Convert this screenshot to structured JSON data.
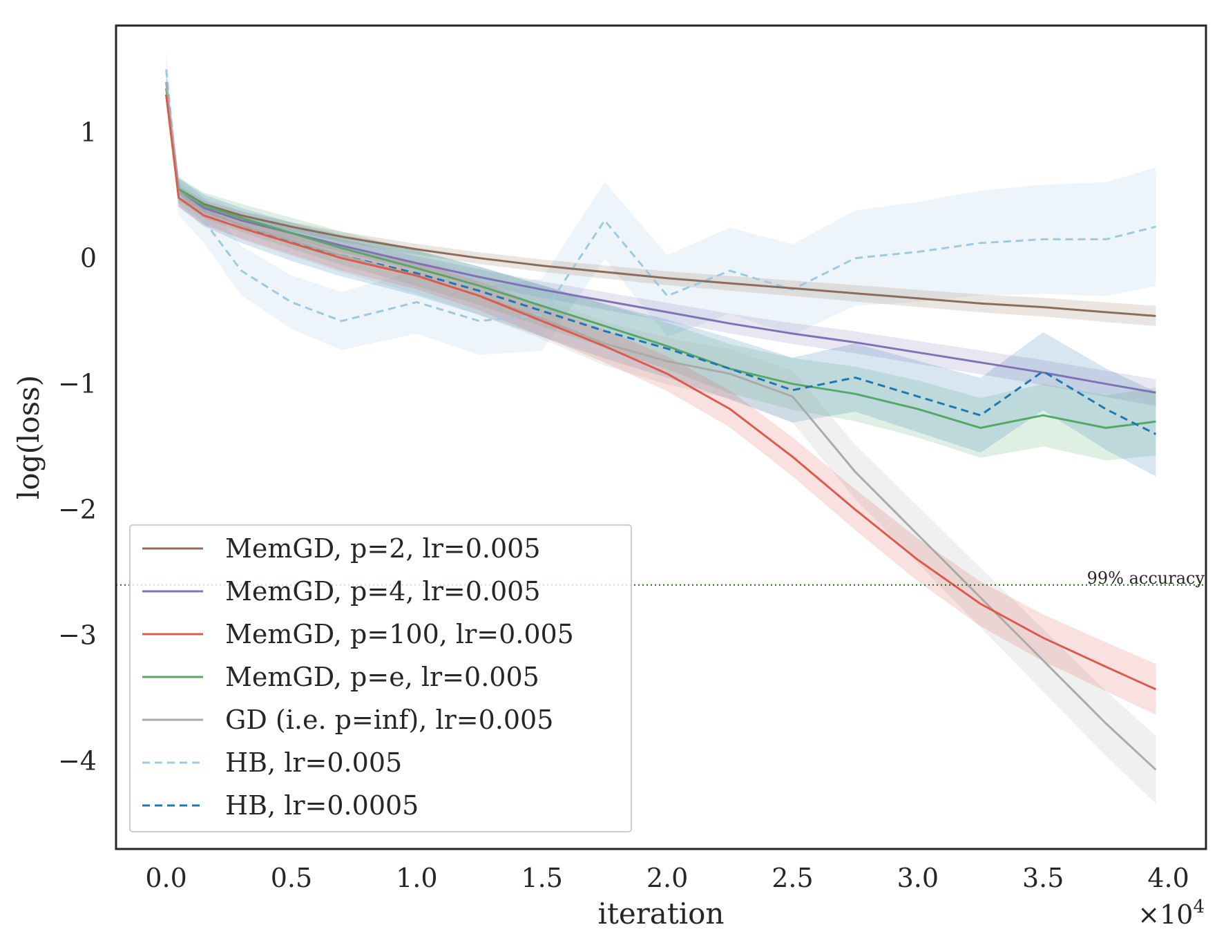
{
  "chart_data": {
    "type": "line",
    "title": "",
    "xlabel": "iteration",
    "ylabel": "log(loss)",
    "x_scale_label": "×10",
    "x_scale_exponent": "4",
    "xlim": [
      -0.2,
      4.15
    ],
    "ylim": [
      -4.7,
      1.85
    ],
    "x_ticks": [
      0.0,
      0.5,
      1.0,
      1.5,
      2.0,
      2.5,
      3.0,
      3.5,
      4.0
    ],
    "x_tick_labels": [
      "0.0",
      "0.5",
      "1.0",
      "1.5",
      "2.0",
      "2.5",
      "3.0",
      "3.5",
      "4.0"
    ],
    "y_ticks": [
      1,
      0,
      -1,
      -2,
      -3,
      -4
    ],
    "y_tick_labels": [
      "1",
      "0",
      "−1",
      "−2",
      "−3",
      "−4"
    ],
    "grid": false,
    "legend_position": "lower-left",
    "hline": {
      "y": -2.6,
      "label": "99% accuracy",
      "color": "#1a7a1a"
    },
    "x": [
      0.0,
      0.05,
      0.15,
      0.3,
      0.5,
      0.7,
      1.0,
      1.25,
      1.5,
      1.75,
      2.0,
      2.25,
      2.5,
      2.75,
      3.0,
      3.25,
      3.5,
      3.75,
      3.95
    ],
    "series": [
      {
        "name": "MemGD, p=2, lr=0.005",
        "color": "#8c6d5a",
        "dash": "solid",
        "band": 0.06,
        "values": [
          1.3,
          0.55,
          0.43,
          0.34,
          0.25,
          0.17,
          0.07,
          0.0,
          -0.06,
          -0.11,
          -0.16,
          -0.2,
          -0.24,
          -0.28,
          -0.32,
          -0.36,
          -0.39,
          -0.43,
          -0.46
        ]
      },
      {
        "name": "MemGD, p=4, lr=0.005",
        "color": "#8172b3",
        "dash": "solid",
        "band": 0.08,
        "values": [
          1.3,
          0.52,
          0.4,
          0.3,
          0.2,
          0.1,
          -0.04,
          -0.15,
          -0.25,
          -0.34,
          -0.43,
          -0.52,
          -0.6,
          -0.67,
          -0.75,
          -0.83,
          -0.91,
          -1.0,
          -1.07
        ]
      },
      {
        "name": "MemGD, p=100, lr=0.005",
        "color": "#dd5a4e",
        "dash": "solid",
        "band": 0.15,
        "values": [
          1.3,
          0.48,
          0.34,
          0.24,
          0.12,
          0.0,
          -0.14,
          -0.3,
          -0.5,
          -0.7,
          -0.92,
          -1.2,
          -1.58,
          -2.0,
          -2.4,
          -2.75,
          -3.02,
          -3.25,
          -3.43
        ]
      },
      {
        "name": "MemGD, p=e, lr=0.005",
        "color": "#55a868",
        "dash": "solid",
        "band": 0.2,
        "values": [
          1.35,
          0.55,
          0.42,
          0.32,
          0.2,
          0.08,
          -0.08,
          -0.22,
          -0.38,
          -0.54,
          -0.7,
          -0.88,
          -1.0,
          -1.08,
          -1.2,
          -1.35,
          -1.25,
          -1.35,
          -1.3
        ]
      },
      {
        "name": "GD (i.e. p=inf), lr=0.005",
        "color": "#aaaaaa",
        "dash": "solid",
        "band": 0.2,
        "values": [
          1.4,
          0.52,
          0.38,
          0.26,
          0.14,
          0.02,
          -0.14,
          -0.3,
          -0.48,
          -0.68,
          -0.82,
          -0.92,
          -1.1,
          -1.7,
          -2.2,
          -2.7,
          -3.2,
          -3.7,
          -4.07
        ]
      },
      {
        "name": "HB, lr=0.005",
        "color": "#9ecae1",
        "dash": "dashed",
        "band": 0.35,
        "values": [
          1.5,
          0.5,
          0.3,
          -0.1,
          -0.35,
          -0.5,
          -0.35,
          -0.5,
          -0.45,
          0.3,
          -0.3,
          -0.1,
          -0.25,
          0.0,
          0.05,
          0.12,
          0.15,
          0.15,
          0.25
        ]
      },
      {
        "name": "HB, lr=0.0005",
        "color": "#1f77b4",
        "dash": "dashed",
        "band": 0.25,
        "values": [
          1.4,
          0.52,
          0.38,
          0.26,
          0.13,
          0.02,
          -0.12,
          -0.26,
          -0.42,
          -0.58,
          -0.72,
          -0.88,
          -1.05,
          -0.95,
          -1.1,
          -1.25,
          -0.9,
          -1.2,
          -1.4
        ]
      }
    ]
  }
}
